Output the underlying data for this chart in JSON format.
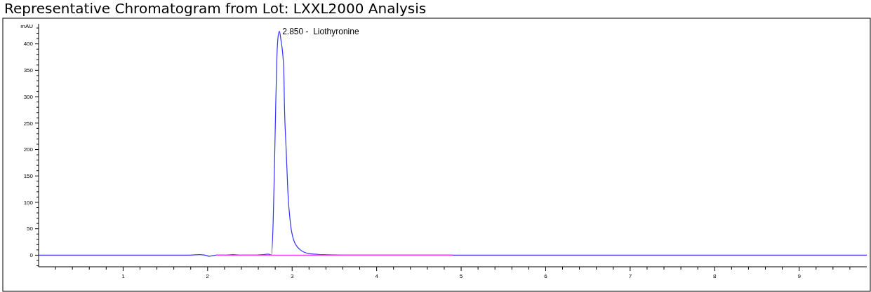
{
  "chart_data": {
    "type": "line",
    "title": "Representative Chromatogram from Lot: LXXL2000 Analysis",
    "ylabel": "mAU",
    "grid": false,
    "marker": "none",
    "line_style": "solid",
    "xlim": [
      0,
      9.8
    ],
    "ylim": [
      -22,
      438
    ],
    "xticks": [
      {
        "value": 0.2,
        "label": null
      },
      {
        "value": 0.4,
        "label": null
      },
      {
        "value": 0.6,
        "label": null
      },
      {
        "value": 0.8,
        "label": null
      },
      1,
      {
        "value": 1.2,
        "label": null
      },
      {
        "value": 1.4,
        "label": null
      },
      {
        "value": 1.6,
        "label": null
      },
      {
        "value": 1.8,
        "label": null
      },
      2,
      {
        "value": 2.2,
        "label": null
      },
      {
        "value": 2.4,
        "label": null
      },
      {
        "value": 2.6,
        "label": null
      },
      {
        "value": 2.8,
        "label": null
      },
      3,
      {
        "value": 3.2,
        "label": null
      },
      {
        "value": 3.4,
        "label": null
      },
      {
        "value": 3.6,
        "label": null
      },
      {
        "value": 3.8,
        "label": null
      },
      4,
      {
        "value": 4.2,
        "label": null
      },
      {
        "value": 4.4,
        "label": null
      },
      {
        "value": 4.6,
        "label": null
      },
      {
        "value": 4.8,
        "label": null
      },
      5,
      {
        "value": 5.2,
        "label": null
      },
      {
        "value": 5.4,
        "label": null
      },
      {
        "value": 5.6,
        "label": null
      },
      {
        "value": 5.8,
        "label": null
      },
      6,
      {
        "value": 6.2,
        "label": null
      },
      {
        "value": 6.4,
        "label": null
      },
      {
        "value": 6.6,
        "label": null
      },
      {
        "value": 6.8,
        "label": null
      },
      7,
      {
        "value": 7.2,
        "label": null
      },
      {
        "value": 7.4,
        "label": null
      },
      {
        "value": 7.6,
        "label": null
      },
      {
        "value": 7.8,
        "label": null
      },
      8,
      {
        "value": 8.2,
        "label": null
      },
      {
        "value": 8.4,
        "label": null
      },
      {
        "value": 8.6,
        "label": null
      },
      {
        "value": 8.8,
        "label": null
      },
      9,
      {
        "value": 9.2,
        "label": null
      },
      {
        "value": 9.4,
        "label": null
      },
      {
        "value": 9.6,
        "label": null
      }
    ],
    "yticks": [
      {
        "value": -20,
        "label": null
      },
      {
        "value": -10,
        "label": null
      },
      0,
      {
        "value": 10,
        "label": null
      },
      {
        "value": 20,
        "label": null
      },
      {
        "value": 30,
        "label": null
      },
      {
        "value": 40,
        "label": null
      },
      50,
      {
        "value": 60,
        "label": null
      },
      {
        "value": 70,
        "label": null
      },
      {
        "value": 80,
        "label": null
      },
      {
        "value": 90,
        "label": null
      },
      100,
      {
        "value": 110,
        "label": null
      },
      {
        "value": 120,
        "label": null
      },
      {
        "value": 130,
        "label": null
      },
      {
        "value": 140,
        "label": null
      },
      150,
      {
        "value": 160,
        "label": null
      },
      {
        "value": 170,
        "label": null
      },
      {
        "value": 180,
        "label": null
      },
      {
        "value": 190,
        "label": null
      },
      200,
      {
        "value": 210,
        "label": null
      },
      {
        "value": 220,
        "label": null
      },
      {
        "value": 230,
        "label": null
      },
      {
        "value": 240,
        "label": null
      },
      250,
      {
        "value": 260,
        "label": null
      },
      {
        "value": 270,
        "label": null
      },
      {
        "value": 280,
        "label": null
      },
      {
        "value": 290,
        "label": null
      },
      300,
      {
        "value": 310,
        "label": null
      },
      {
        "value": 320,
        "label": null
      },
      {
        "value": 330,
        "label": null
      },
      {
        "value": 340,
        "label": null
      },
      350,
      {
        "value": 360,
        "label": null
      },
      {
        "value": 370,
        "label": null
      },
      {
        "value": 380,
        "label": null
      },
      {
        "value": 390,
        "label": null
      },
      400,
      {
        "value": 410,
        "label": null
      },
      {
        "value": 420,
        "label": null
      },
      {
        "value": 430,
        "label": null
      }
    ],
    "annotations": [
      {
        "text": "2.850 -  Liothyronine",
        "x": 2.85,
        "y": 424
      }
    ],
    "series": [
      {
        "color": "#3333ff",
        "x": [
          0,
          1.5,
          1.75,
          1.9,
          1.97,
          2.02,
          2.1,
          2.2,
          2.3,
          2.4,
          2.55,
          2.65,
          2.72,
          2.755,
          2.775,
          2.79,
          2.805,
          2.82,
          2.835,
          2.85,
          2.865,
          2.9,
          2.91,
          2.93,
          2.95,
          2.98,
          3.02,
          3.09,
          3.2,
          3.36,
          3.6,
          4,
          5,
          9.8
        ],
        "values": [
          0,
          0,
          0,
          1,
          0,
          -2,
          0,
          0,
          1,
          0,
          0,
          1,
          2,
          0,
          60,
          159,
          277,
          376,
          415,
          424,
          410,
          356,
          277,
          198,
          119,
          60,
          28,
          11,
          3,
          1,
          0,
          0,
          0,
          0
        ]
      },
      {
        "color": "#ff33ff",
        "x": [
          2.1,
          4.9
        ],
        "values": [
          0,
          0
        ]
      }
    ]
  }
}
